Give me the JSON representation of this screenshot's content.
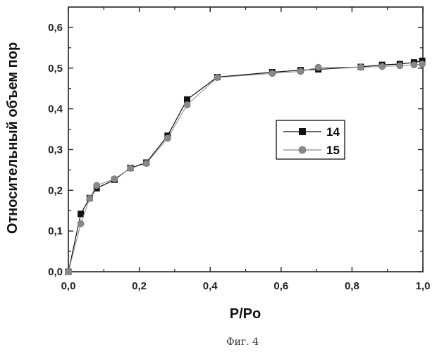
{
  "chart_data": {
    "type": "line",
    "xlabel": "P/Po",
    "ylabel": "Относительный объем пор",
    "xlim": [
      0,
      1.0
    ],
    "ylim": [
      0,
      0.65
    ],
    "x_ticks": [
      "0,0",
      "0,2",
      "0,4",
      "0,6",
      "0,8",
      "1,0"
    ],
    "y_ticks": [
      "0,0",
      "0,1",
      "0,2",
      "0,3",
      "0,4",
      "0,5",
      "0,6"
    ],
    "legend_position": "right",
    "grid": false,
    "series": [
      {
        "name": "14",
        "marker": "square",
        "color": "#111111",
        "points": [
          [
            0.0,
            0.0
          ],
          [
            0.035,
            0.142
          ],
          [
            0.06,
            0.181
          ],
          [
            0.08,
            0.205
          ],
          [
            0.13,
            0.226
          ],
          [
            0.175,
            0.255
          ],
          [
            0.22,
            0.268
          ],
          [
            0.28,
            0.334
          ],
          [
            0.335,
            0.423
          ],
          [
            0.42,
            0.478
          ],
          [
            0.575,
            0.49
          ],
          [
            0.655,
            0.495
          ],
          [
            0.705,
            0.497
          ],
          [
            0.825,
            0.503
          ],
          [
            0.885,
            0.508
          ],
          [
            0.935,
            0.51
          ],
          [
            0.975,
            0.514
          ],
          [
            0.998,
            0.518
          ]
        ]
      },
      {
        "name": "15",
        "marker": "circle",
        "color": "#888888",
        "points": [
          [
            0.0,
            0.0
          ],
          [
            0.035,
            0.118
          ],
          [
            0.06,
            0.18
          ],
          [
            0.08,
            0.212
          ],
          [
            0.13,
            0.228
          ],
          [
            0.175,
            0.254
          ],
          [
            0.22,
            0.266
          ],
          [
            0.28,
            0.328
          ],
          [
            0.335,
            0.41
          ],
          [
            0.42,
            0.477
          ],
          [
            0.575,
            0.487
          ],
          [
            0.655,
            0.492
          ],
          [
            0.705,
            0.502
          ],
          [
            0.825,
            0.502
          ],
          [
            0.885,
            0.504
          ],
          [
            0.935,
            0.506
          ],
          [
            0.975,
            0.508
          ],
          [
            0.998,
            0.51
          ]
        ]
      }
    ]
  },
  "caption": "Фиг. 4"
}
